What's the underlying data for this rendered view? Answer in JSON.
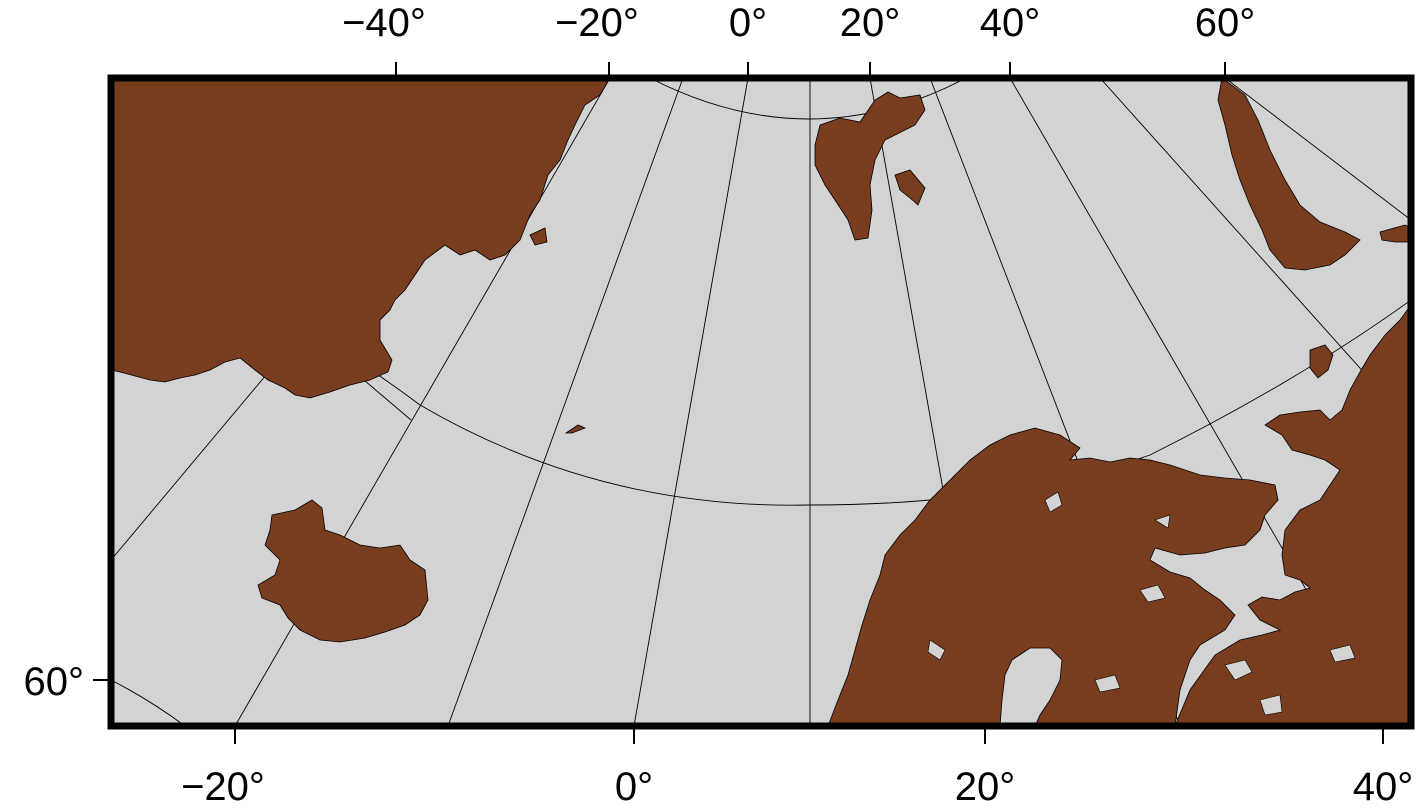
{
  "map": {
    "projection": "polar stereographic (North Pole)",
    "colors": {
      "ocean": "#d3d3d3",
      "land": "#783c1e",
      "lakes": "#d3d3d3",
      "frame": "#000000",
      "gridlines": "#000000"
    },
    "top_longitude_labels": [
      "−40°",
      "−20°",
      "0°",
      "20°",
      "40°",
      "60°"
    ],
    "bottom_longitude_labels": [
      "−20°",
      "0°",
      "20°",
      "40°"
    ],
    "left_latitude_labels": [
      "60°"
    ],
    "features": [
      "Greenland",
      "Iceland",
      "Svalbard",
      "Jan Mayen",
      "Novaya Zemlya",
      "Scandinavia",
      "Kola Peninsula",
      "White Sea"
    ]
  }
}
